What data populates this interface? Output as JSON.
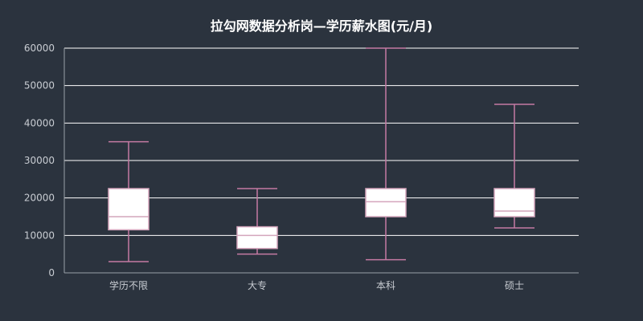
{
  "chart_data": {
    "type": "boxplot",
    "title": "拉勾网数据分析岗—学历薪水图(元/月)",
    "categories": [
      "学历不限",
      "大专",
      "本科",
      "硕士"
    ],
    "boxes": [
      {
        "category": "学历不限",
        "min": 3000,
        "q1": 11500,
        "median": 15000,
        "q3": 22500,
        "max": 35000
      },
      {
        "category": "大专",
        "min": 5000,
        "q1": 6500,
        "median": 10000,
        "q3": 12300,
        "max": 22500
      },
      {
        "category": "本科",
        "min": 3500,
        "q1": 15000,
        "median": 19000,
        "q3": 22500,
        "max": 60000
      },
      {
        "category": "硕士",
        "min": 12000,
        "q1": 15000,
        "median": 16500,
        "q3": 22500,
        "max": 45000
      }
    ],
    "yticks": [
      "0",
      "10000",
      "20000",
      "30000",
      "40000",
      "50000",
      "60000"
    ],
    "ylim": [
      0,
      60000
    ],
    "grid": true,
    "colors": {
      "box_fill": "#ffffff",
      "box_stroke": "#d4a5bc",
      "whisker": "#c57aa3",
      "background": "#2b333e"
    }
  }
}
